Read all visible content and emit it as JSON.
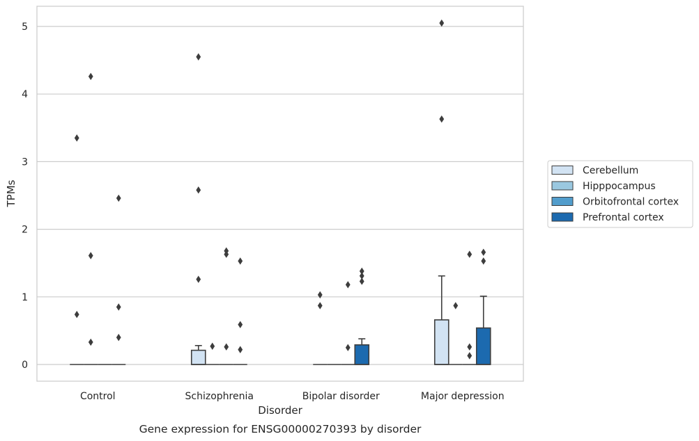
{
  "chart_data": {
    "type": "box",
    "title": "",
    "caption": "Gene expression for ENSG00000270393 by disorder",
    "xlabel": "Disorder",
    "ylabel": "TPMs",
    "ylim": [
      -0.25,
      5.3
    ],
    "yticks": [
      0,
      1,
      2,
      3,
      4,
      5
    ],
    "grid": "horizontal",
    "legend_position": "right",
    "categories": [
      "Control",
      "Schizophrenia",
      "Bipolar disorder",
      "Major depression"
    ],
    "series": [
      {
        "name": "Cerebellum",
        "color": "#d2e3f3",
        "boxes": [
          {
            "q1": 0,
            "median": 0,
            "q3": 0,
            "whisker_low": 0,
            "whisker_high": 0,
            "outliers": [
              0.74,
              3.35
            ]
          },
          {
            "q1": 0,
            "median": 0,
            "q3": 0.21,
            "whisker_low": 0,
            "whisker_high": 0.28,
            "outliers": [
              1.26,
              2.58,
              4.55
            ]
          },
          {
            "q1": 0,
            "median": 0,
            "q3": 0,
            "whisker_low": 0,
            "whisker_high": 0,
            "outliers": [
              0.87,
              1.03
            ]
          },
          {
            "q1": 0,
            "median": 0,
            "q3": 0.66,
            "whisker_low": 0,
            "whisker_high": 1.31,
            "outliers": [
              3.63,
              5.05
            ]
          }
        ]
      },
      {
        "name": "Hipppocampus",
        "color": "#9ac8e0",
        "boxes": [
          {
            "q1": 0,
            "median": 0,
            "q3": 0,
            "whisker_low": 0,
            "whisker_high": 0,
            "outliers": [
              0.33,
              1.61,
              4.26
            ]
          },
          {
            "q1": 0,
            "median": 0,
            "q3": 0,
            "whisker_low": 0,
            "whisker_high": 0,
            "outliers": [
              0.27
            ]
          },
          {
            "q1": 0,
            "median": 0,
            "q3": 0,
            "whisker_low": 0,
            "whisker_high": 0,
            "outliers": []
          },
          {
            "q1": 0,
            "median": 0,
            "q3": 0,
            "whisker_low": 0,
            "whisker_high": 0,
            "outliers": [
              0.87
            ]
          }
        ]
      },
      {
        "name": "Orbitofrontal cortex",
        "color": "#529dcc",
        "boxes": [
          {
            "q1": 0,
            "median": 0,
            "q3": 0,
            "whisker_low": 0,
            "whisker_high": 0,
            "outliers": []
          },
          {
            "q1": 0,
            "median": 0,
            "q3": 0,
            "whisker_low": 0,
            "whisker_high": 0,
            "outliers": [
              0.26,
              1.63,
              1.68
            ]
          },
          {
            "q1": 0,
            "median": 0,
            "q3": 0,
            "whisker_low": 0,
            "whisker_high": 0,
            "outliers": [
              0.25,
              1.18
            ]
          },
          {
            "q1": 0,
            "median": 0,
            "q3": 0,
            "whisker_low": 0,
            "whisker_high": 0,
            "outliers": [
              0.13,
              0.26,
              1.63
            ]
          }
        ]
      },
      {
        "name": "Prefrontal cortex",
        "color": "#1c6aaf",
        "boxes": [
          {
            "q1": 0,
            "median": 0,
            "q3": 0,
            "whisker_low": 0,
            "whisker_high": 0,
            "outliers": [
              0.4,
              0.85,
              2.46
            ]
          },
          {
            "q1": 0,
            "median": 0,
            "q3": 0,
            "whisker_low": 0,
            "whisker_high": 0,
            "outliers": [
              0.22,
              0.59,
              1.53
            ]
          },
          {
            "q1": 0,
            "median": 0,
            "q3": 0.29,
            "whisker_low": 0,
            "whisker_high": 0.38,
            "outliers": [
              1.23,
              1.31,
              1.38
            ]
          },
          {
            "q1": 0,
            "median": 0,
            "q3": 0.54,
            "whisker_low": 0,
            "whisker_high": 1.01,
            "outliers": [
              1.53,
              1.66
            ]
          }
        ]
      }
    ]
  }
}
